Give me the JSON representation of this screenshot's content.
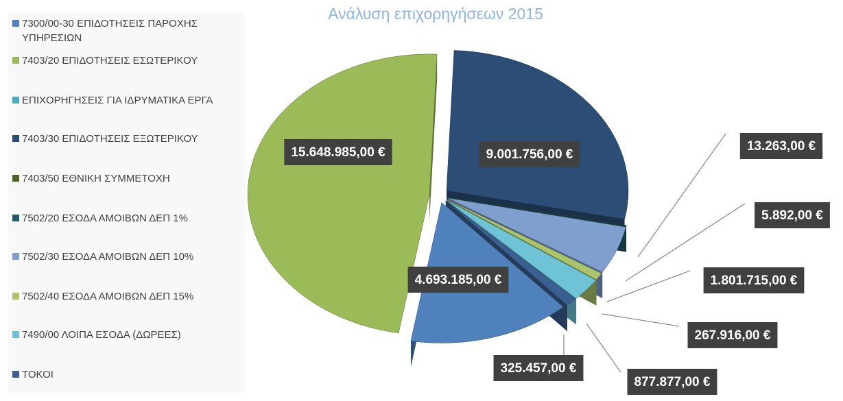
{
  "chart_data": {
    "type": "pie",
    "title": "Ανάλυση επιχορηγήσεων 2015",
    "categories": [
      "7300/00-30 ΕΠΙΔΟΤΗΣΕΙΣ ΠΑΡΟΧΗΣ ΥΠΗΡΕΣΙΩΝ",
      "7403/20 ΕΠΙΔΟΤΗΣΕΙΣ ΕΣΩΤΕΡΙΚΟΥ",
      "ΕΠΙΧΟΡΗΓΗΣΕΙΣ ΓΙΑ ΙΔΡΥΜΑΤΙΚΑ ΕΡΓΑ",
      "7403/30 ΕΠΙΔΟΤΗΣΕΙΣ ΕΞΩΤΕΡΙΚΟΥ",
      "7403/50 ΕΘΝΙΚΗ ΣΥΜΜΕΤΟΧΗ",
      "7502/20 ΕΣΟΔΑ ΑΜΟΙΒΩΝ ΔΕΠ 1%",
      "7502/30 ΕΣΟΔΑ ΑΜΟΙΒΩΝ ΔΕΠ 10%",
      "7502/40 ΕΣΟΔΑ ΑΜΟΙΒΩΝ ΔΕΠ 15%",
      "7490/00 ΛΟΙΠΑ ΕΣΟΔΑ (ΔΩΡΕΕΣ)",
      "ΤΟΚΟΙ"
    ],
    "values": [
      4693185,
      15648985,
      null,
      9001756,
      13263,
      5892,
      1801715,
      267916,
      877877,
      325457
    ],
    "value_labels": [
      "4.693.185,00 €",
      "15.648.985,00 €",
      null,
      "9.001.756,00 €",
      "13.263,00 €",
      "5.892,00 €",
      "1.801.715,00 €",
      "267.916,00 €",
      "877.877,00 €",
      "325.457,00 €"
    ],
    "colors": [
      "#4f81bd",
      "#9bbb59",
      "#4bacc6",
      "#2c4d75",
      "#4f6228",
      "#215968",
      "#7f9fcf",
      "#a9c46a",
      "#6ec3d6",
      "#3a5f91"
    ],
    "legend": "left"
  }
}
